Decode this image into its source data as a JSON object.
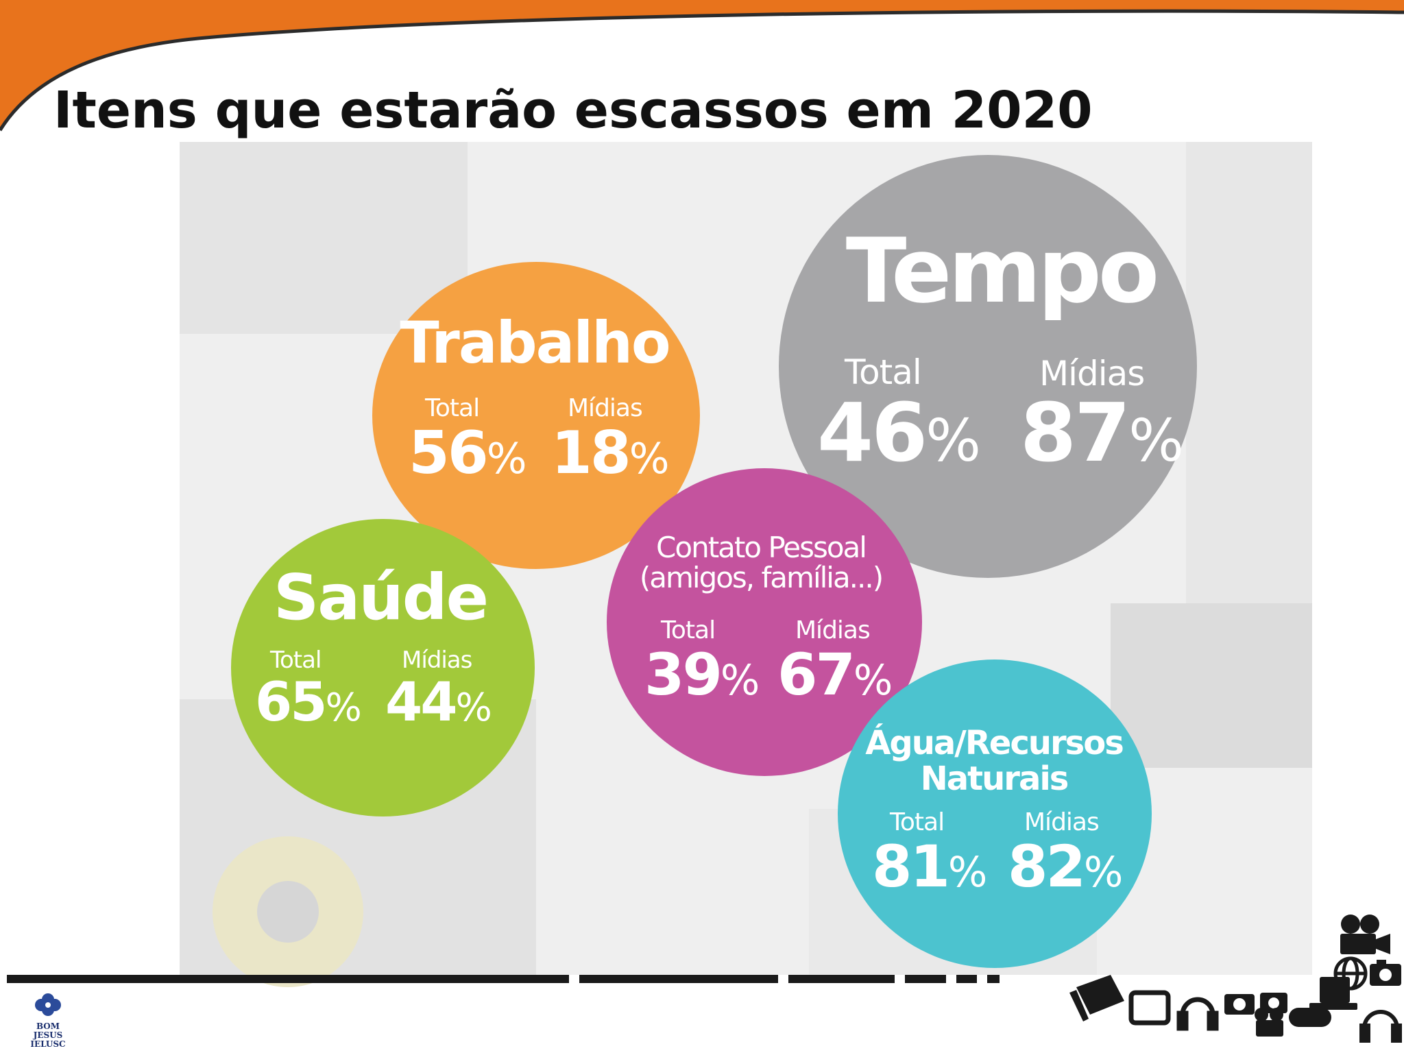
{
  "slide": {
    "title": "Itens que estarão escassos em 2020",
    "header_color": "#e8731c"
  },
  "bubbles": [
    {
      "id": "trabalho",
      "name": "Trabalho",
      "total_label": "Total",
      "midias_label": "Mídias",
      "total": "56",
      "midias": "18",
      "color": "#f5a142"
    },
    {
      "id": "tempo",
      "name": "Tempo",
      "total_label": "Total",
      "midias_label": "Mídias",
      "total": "46",
      "midias": "87",
      "color": "#a6a6a8"
    },
    {
      "id": "saude",
      "name": "Saúde",
      "total_label": "Total",
      "midias_label": "Mídias",
      "total": "65",
      "midias": "44",
      "color": "#a2c93a"
    },
    {
      "id": "contato",
      "name_line1": "Contato Pessoal",
      "name_line2": "(amigos, família...)",
      "total_label": "Total",
      "midias_label": "Mídias",
      "total": "39",
      "midias": "67",
      "color": "#c4539e"
    },
    {
      "id": "agua",
      "name_line1": "Água/Recursos",
      "name_line2": "Naturais",
      "total_label": "Total",
      "midias_label": "Mídias",
      "total": "81",
      "midias": "82",
      "color": "#4cc3cf"
    }
  ],
  "percent_sign": "%",
  "logo": {
    "line1": "BOM JESUS",
    "line2": "IELUSC",
    "icon": "flower-logo-icon"
  },
  "decor": {
    "icons": [
      "video-camera-icon",
      "laptop-icon",
      "camera-icon",
      "globe-icon",
      "headphones-icon",
      "gamepad-icon",
      "tv-icon"
    ]
  }
}
